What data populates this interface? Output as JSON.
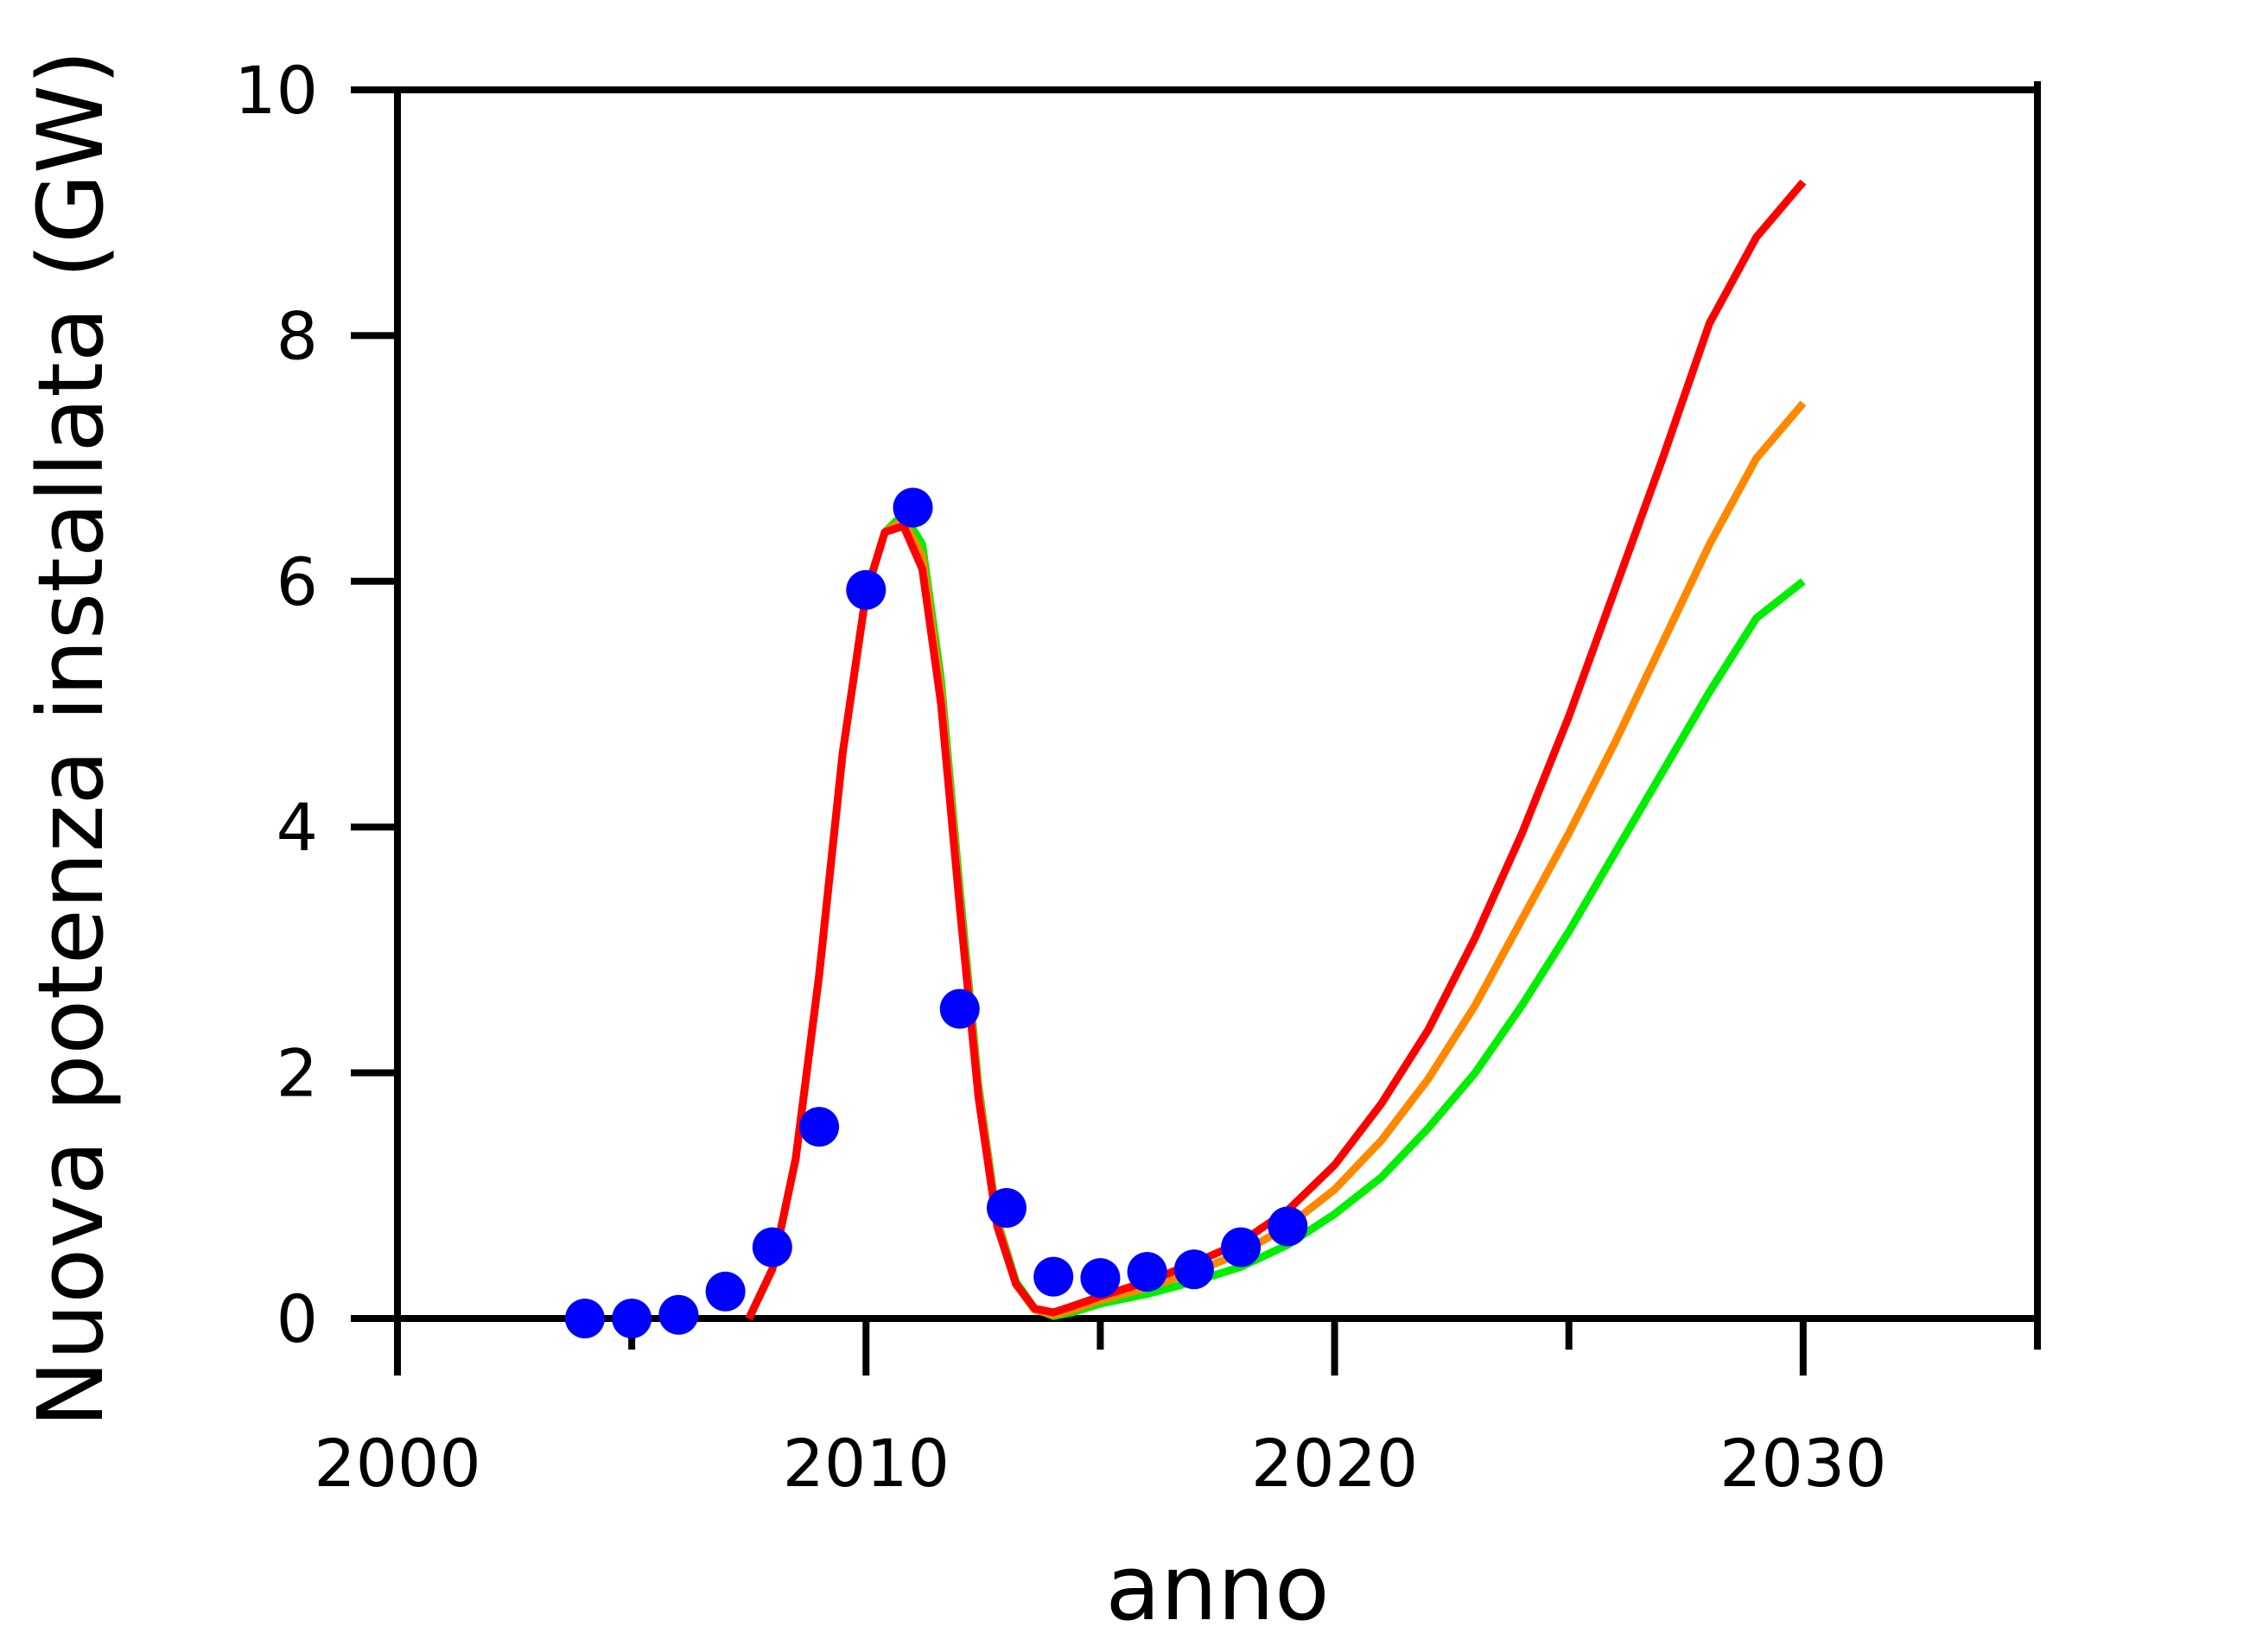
{
  "chart_data": {
    "type": "line",
    "title": "",
    "xlabel": "anno",
    "ylabel": "Nuova potenza installata (GW)",
    "xlim": [
      2000,
      2035
    ],
    "ylim": [
      0,
      10
    ],
    "xticks": [
      2000,
      2010,
      2020,
      2030
    ],
    "xminor": [
      2005,
      2015,
      2025,
      2035
    ],
    "yticks": [
      0,
      2,
      4,
      6,
      8,
      10
    ],
    "grid": false,
    "legend": "none",
    "series": [
      {
        "kind": "line",
        "color": "#00ee00",
        "x": [
          2007.5,
          2008,
          2008.5,
          2009,
          2009.5,
          2010,
          2010.4,
          2010.8,
          2011.2,
          2011.6,
          2012,
          2012.4,
          2012.8,
          2013.2,
          2013.6,
          2014,
          2014.4,
          2015,
          2016,
          2017,
          2018,
          2019,
          2020,
          2021,
          2022,
          2023,
          2024,
          2025,
          2026,
          2027,
          2028,
          2029,
          2030
        ],
        "y": [
          0.0,
          0.4,
          1.3,
          2.8,
          4.6,
          5.9,
          6.4,
          6.55,
          6.3,
          5.2,
          3.5,
          1.9,
          0.8,
          0.3,
          0.08,
          0.02,
          0.05,
          0.12,
          0.2,
          0.3,
          0.42,
          0.6,
          0.85,
          1.15,
          1.55,
          2.0,
          2.55,
          3.15,
          3.8,
          4.45,
          5.1,
          5.7,
          6.0
        ]
      },
      {
        "kind": "line",
        "color": "#ff8800",
        "x": [
          2007.5,
          2008,
          2008.5,
          2009,
          2009.5,
          2010,
          2010.4,
          2010.8,
          2011.2,
          2011.6,
          2012,
          2012.4,
          2012.8,
          2013.2,
          2013.6,
          2014,
          2014.4,
          2015,
          2016,
          2017,
          2018,
          2019,
          2020,
          2021,
          2022,
          2023,
          2024,
          2025,
          2026,
          2027,
          2028,
          2029,
          2030
        ],
        "y": [
          0.0,
          0.4,
          1.3,
          2.8,
          4.6,
          5.9,
          6.4,
          6.5,
          6.2,
          5.1,
          3.4,
          1.85,
          0.78,
          0.28,
          0.07,
          0.03,
          0.07,
          0.15,
          0.25,
          0.38,
          0.53,
          0.75,
          1.05,
          1.45,
          1.95,
          2.55,
          3.25,
          3.95,
          4.7,
          5.5,
          6.3,
          7.0,
          7.45
        ]
      },
      {
        "kind": "line",
        "color": "#ff0000",
        "x": [
          2007.5,
          2008,
          2008.5,
          2009,
          2009.5,
          2010,
          2010.4,
          2010.8,
          2011.2,
          2011.6,
          2012,
          2012.4,
          2012.8,
          2013.2,
          2013.6,
          2014,
          2014.4,
          2015,
          2016,
          2017,
          2018,
          2019,
          2020,
          2021,
          2022,
          2023,
          2024,
          2025,
          2026,
          2027,
          2028,
          2029,
          2030
        ],
        "y": [
          0.0,
          0.4,
          1.3,
          2.8,
          4.6,
          5.9,
          6.4,
          6.45,
          6.1,
          5.0,
          3.35,
          1.8,
          0.75,
          0.28,
          0.08,
          0.05,
          0.1,
          0.18,
          0.3,
          0.45,
          0.62,
          0.88,
          1.25,
          1.75,
          2.35,
          3.1,
          3.95,
          4.9,
          5.95,
          7.0,
          8.1,
          8.8,
          9.25
        ]
      },
      {
        "kind": "scatter",
        "color": "#0000ff",
        "x": [
          2004,
          2005,
          2006,
          2007,
          2008,
          2009,
          2010,
          2011,
          2012,
          2013,
          2014,
          2015,
          2016,
          2017,
          2018,
          2019
        ],
        "y": [
          0.0,
          0.0,
          0.03,
          0.22,
          0.58,
          1.56,
          5.93,
          6.6,
          2.52,
          0.9,
          0.34,
          0.33,
          0.38,
          0.4,
          0.58,
          0.75
        ]
      }
    ]
  }
}
